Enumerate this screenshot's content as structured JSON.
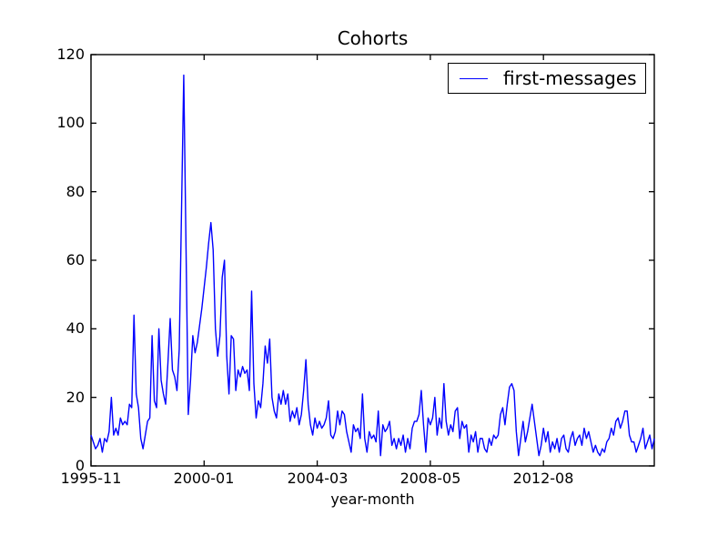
{
  "chart_data": {
    "type": "line",
    "title": "Cohorts",
    "xlabel": "year-month",
    "ylabel": "",
    "ylim": [
      0,
      120
    ],
    "yticks": [
      0,
      20,
      40,
      60,
      80,
      100,
      120
    ],
    "ytick_labels": [
      "0",
      "20",
      "40",
      "60",
      "80",
      "100",
      "120"
    ],
    "x_tick_indices": [
      0,
      50,
      100,
      150,
      200
    ],
    "x_tick_labels": [
      "1995-11",
      "2000-01",
      "2004-03",
      "2008-05",
      "2012-08"
    ],
    "grid": false,
    "legend_position": "upper right",
    "axis_color": "#000000",
    "series": [
      {
        "name": "first-messages",
        "color": "#0000ff",
        "values": [
          9,
          7,
          5,
          6,
          8,
          4,
          8,
          7,
          10,
          20,
          9,
          11,
          9,
          14,
          12,
          13,
          12,
          18,
          17,
          44,
          21,
          17,
          8,
          5,
          9,
          13,
          14,
          38,
          19,
          17,
          40,
          25,
          21,
          18,
          30,
          43,
          28,
          26,
          22,
          34,
          74,
          114,
          64,
          15,
          25,
          38,
          33,
          36,
          41,
          46,
          52,
          58,
          65,
          71,
          63,
          40,
          32,
          38,
          55,
          60,
          32,
          21,
          38,
          37,
          22,
          28,
          26,
          29,
          27,
          28,
          22,
          51,
          24,
          14,
          19,
          17,
          24,
          35,
          30,
          37,
          20,
          16,
          14,
          21,
          18,
          22,
          18,
          21,
          13,
          16,
          14,
          17,
          12,
          15,
          22,
          31,
          18,
          12,
          9,
          14,
          11,
          13,
          11,
          12,
          14,
          19,
          9,
          8,
          10,
          16,
          12,
          16,
          15,
          10,
          7,
          4,
          12,
          10,
          11,
          8,
          21,
          8,
          4,
          10,
          8,
          9,
          7,
          16,
          3,
          12,
          10,
          11,
          13,
          6,
          8,
          5,
          8,
          6,
          9,
          4,
          8,
          5,
          11,
          13,
          13,
          15,
          22,
          12,
          4,
          14,
          12,
          14,
          20,
          9,
          14,
          11,
          24,
          13,
          9,
          12,
          10,
          16,
          17,
          8,
          13,
          11,
          12,
          4,
          9,
          7,
          10,
          4,
          8,
          8,
          5,
          4,
          8,
          6,
          9,
          8,
          9,
          15,
          17,
          12,
          18,
          23,
          24,
          22,
          10,
          3,
          8,
          13,
          7,
          10,
          14,
          18,
          13,
          8,
          3,
          6,
          11,
          7,
          10,
          4,
          7,
          5,
          8,
          4,
          8,
          9,
          5,
          4,
          8,
          10,
          6,
          8,
          9,
          6,
          11,
          8,
          10,
          7,
          4,
          6,
          4,
          3,
          5,
          4,
          7,
          8,
          11,
          9,
          13,
          14,
          11,
          13,
          16,
          16,
          9,
          7,
          7,
          4,
          6,
          8,
          11,
          5,
          7,
          9,
          5,
          8
        ]
      }
    ]
  }
}
